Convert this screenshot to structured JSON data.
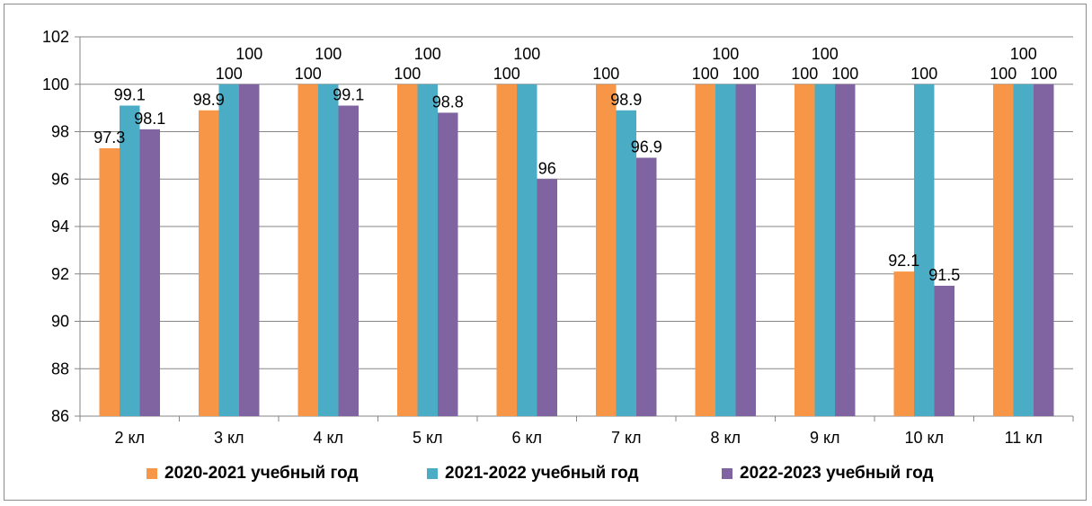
{
  "chart_data": {
    "type": "bar",
    "title": "",
    "xlabel": "",
    "ylabel": "",
    "categories": [
      "2 кл",
      "3 кл",
      "4 кл",
      "5 кл",
      "6 кл",
      "7 кл",
      "8 кл",
      "9 кл",
      "10 кл",
      "11 кл"
    ],
    "series": [
      {
        "name": "2020-2021 учебный год",
        "color": "#f79646",
        "values": [
          97.3,
          98.9,
          100,
          100,
          100,
          100,
          100,
          100,
          92.1,
          100
        ]
      },
      {
        "name": "2021-2022 учебный год",
        "color": "#4bacc6",
        "values": [
          99.1,
          100,
          100,
          100,
          100,
          98.9,
          100,
          100,
          100,
          100
        ]
      },
      {
        "name": "2022-2023 учебный год",
        "color": "#8064a2",
        "values": [
          98.1,
          100,
          99.1,
          98.8,
          96,
          96.9,
          100,
          100,
          91.5,
          100
        ]
      }
    ],
    "ylim": [
      86,
      102
    ],
    "yticks": [
      86,
      88,
      90,
      92,
      94,
      96,
      98,
      100,
      102
    ],
    "grid": true,
    "legend_position": "bottom",
    "data_labels": true
  }
}
